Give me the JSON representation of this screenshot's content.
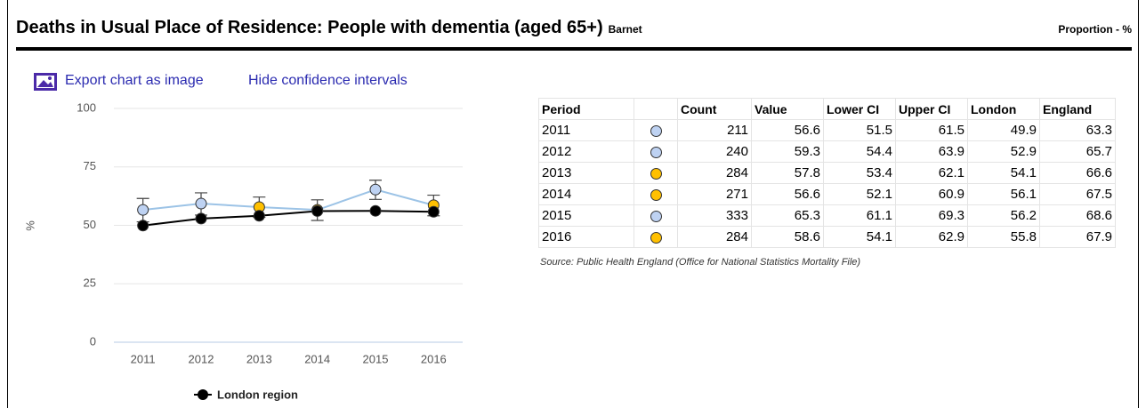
{
  "header": {
    "title": "Deaths in Usual Place of Residence: People with dementia (aged 65+)",
    "area": "Barnet",
    "unit": "Proportion - %"
  },
  "links": {
    "export": "Export chart as image",
    "toggle": "Hide confidence intervals"
  },
  "chart_data": {
    "type": "line",
    "ylabel": "%",
    "categories": [
      "2011",
      "2012",
      "2013",
      "2014",
      "2015",
      "2016"
    ],
    "ylim": [
      0,
      100
    ],
    "yticks": [
      0,
      25,
      50,
      75,
      100
    ],
    "grid": true,
    "legend": "bottom",
    "series": [
      {
        "color": "#9cc3e6",
        "values": [
          56.6,
          59.3,
          57.8,
          56.6,
          65.3,
          58.6
        ],
        "lower": [
          51.5,
          54.4,
          53.4,
          52.1,
          61.1,
          54.1
        ],
        "upper": [
          61.5,
          63.9,
          62.1,
          60.9,
          69.3,
          62.9
        ],
        "point_colors": [
          "#bed2f2",
          "#bed2f2",
          "#ffc000",
          "#ffc000",
          "#bed2f2",
          "#ffc000"
        ]
      },
      {
        "name": "London region",
        "color": "#000000",
        "values": [
          49.9,
          52.9,
          54.1,
          56.1,
          56.2,
          55.8
        ]
      }
    ]
  },
  "table": {
    "columns": [
      "Period",
      "Count",
      "Value",
      "Lower CI",
      "Upper CI",
      "London",
      "England"
    ],
    "rows": [
      [
        "2011",
        211,
        56.6,
        51.5,
        61.5,
        49.9,
        63.3
      ],
      [
        "2012",
        240,
        59.3,
        54.4,
        63.9,
        52.9,
        65.7
      ],
      [
        "2013",
        284,
        57.8,
        53.4,
        62.1,
        54.1,
        66.6
      ],
      [
        "2014",
        271,
        56.6,
        52.1,
        60.9,
        56.1,
        67.5
      ],
      [
        "2015",
        333,
        65.3,
        61.1,
        69.3,
        56.2,
        68.6
      ],
      [
        "2016",
        284,
        58.6,
        54.1,
        62.9,
        55.8,
        67.9
      ]
    ],
    "source": "Source: Public Health England (Office for National Statistics Mortality File)"
  }
}
